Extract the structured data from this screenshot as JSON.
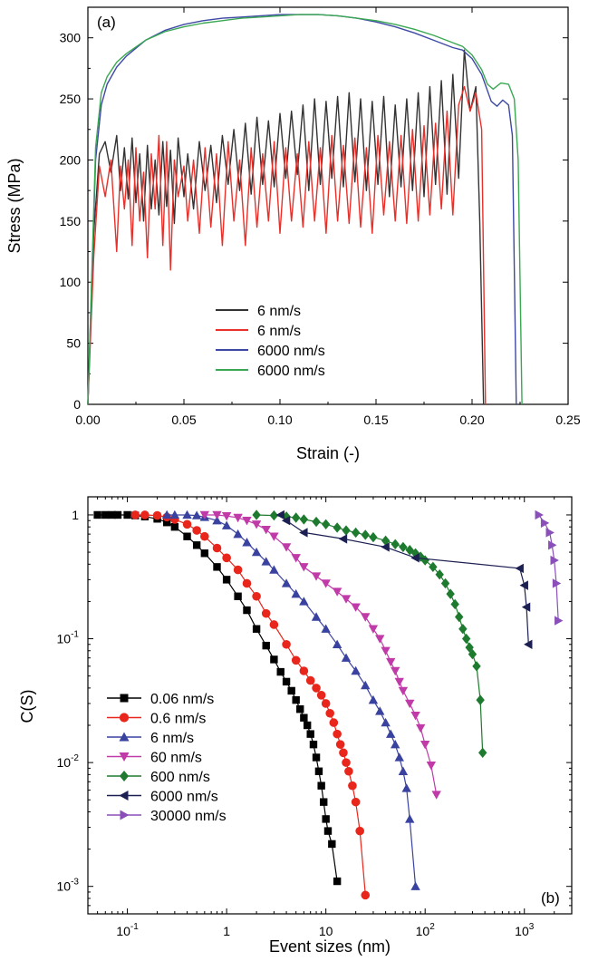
{
  "chart_data": [
    {
      "type": "line",
      "panel_label": "(a)",
      "xlabel": "Strain (-)",
      "ylabel": "Stress (MPa)",
      "xlim": [
        0,
        0.25
      ],
      "ylim": [
        0,
        325
      ],
      "xticks": [
        0,
        0.05,
        0.1,
        0.15,
        0.2,
        0.25
      ],
      "xtick_labels": [
        "0.00",
        "0.05",
        "0.10",
        "0.15",
        "0.20",
        "0.25"
      ],
      "yticks": [
        0,
        50,
        100,
        150,
        200,
        250,
        300
      ],
      "ytick_labels": [
        "0",
        "50",
        "100",
        "150",
        "200",
        "250",
        "300"
      ],
      "legend_position": "bottom-center",
      "series": [
        {
          "name": "6 nm/s",
          "color": "#333333",
          "x": [
            0.0,
            0.003,
            0.006,
            0.009,
            0.012,
            0.015,
            0.017,
            0.019,
            0.021,
            0.023,
            0.025,
            0.027,
            0.029,
            0.031,
            0.033,
            0.035,
            0.037,
            0.039,
            0.041,
            0.043,
            0.045,
            0.047,
            0.05,
            0.052,
            0.055,
            0.058,
            0.061,
            0.064,
            0.067,
            0.07,
            0.073,
            0.076,
            0.079,
            0.082,
            0.085,
            0.088,
            0.091,
            0.094,
            0.097,
            0.1,
            0.103,
            0.106,
            0.109,
            0.112,
            0.115,
            0.118,
            0.121,
            0.124,
            0.127,
            0.13,
            0.133,
            0.136,
            0.139,
            0.142,
            0.145,
            0.148,
            0.151,
            0.154,
            0.157,
            0.16,
            0.163,
            0.166,
            0.169,
            0.172,
            0.175,
            0.178,
            0.181,
            0.184,
            0.187,
            0.19,
            0.193,
            0.196,
            0.199,
            0.202,
            0.204,
            0.206
          ],
          "y": [
            0,
            140,
            205,
            215,
            190,
            220,
            175,
            210,
            168,
            218,
            165,
            205,
            150,
            212,
            160,
            200,
            155,
            215,
            162,
            208,
            148,
            218,
            170,
            205,
            160,
            215,
            175,
            212,
            165,
            220,
            180,
            225,
            175,
            230,
            172,
            235,
            180,
            232,
            178,
            238,
            185,
            240,
            188,
            245,
            175,
            250,
            180,
            248,
            185,
            252,
            178,
            255,
            182,
            250,
            175,
            248,
            180,
            252,
            170,
            245,
            178,
            250,
            175,
            255,
            170,
            260,
            180,
            265,
            172,
            270,
            185,
            290,
            240,
            260,
            150,
            0
          ]
        },
        {
          "name": "6 nm/s",
          "color": "#e8302a",
          "x": [
            0.0,
            0.003,
            0.006,
            0.009,
            0.012,
            0.015,
            0.017,
            0.019,
            0.021,
            0.023,
            0.025,
            0.027,
            0.029,
            0.031,
            0.033,
            0.035,
            0.037,
            0.039,
            0.041,
            0.043,
            0.045,
            0.047,
            0.05,
            0.052,
            0.055,
            0.058,
            0.061,
            0.064,
            0.067,
            0.07,
            0.073,
            0.076,
            0.079,
            0.082,
            0.085,
            0.088,
            0.091,
            0.094,
            0.097,
            0.1,
            0.103,
            0.106,
            0.109,
            0.112,
            0.115,
            0.118,
            0.121,
            0.124,
            0.127,
            0.13,
            0.133,
            0.136,
            0.139,
            0.142,
            0.145,
            0.148,
            0.151,
            0.154,
            0.157,
            0.16,
            0.163,
            0.166,
            0.169,
            0.172,
            0.175,
            0.178,
            0.181,
            0.184,
            0.187,
            0.19,
            0.193,
            0.196,
            0.199,
            0.202,
            0.205,
            0.207
          ],
          "y": [
            0,
            120,
            195,
            170,
            200,
            125,
            195,
            160,
            200,
            130,
            210,
            150,
            190,
            120,
            205,
            160,
            220,
            130,
            215,
            110,
            200,
            170,
            195,
            150,
            200,
            140,
            210,
            145,
            205,
            130,
            215,
            150,
            200,
            130,
            210,
            145,
            205,
            150,
            215,
            140,
            210,
            150,
            205,
            145,
            215,
            150,
            210,
            140,
            220,
            150,
            212,
            148,
            218,
            145,
            210,
            140,
            220,
            155,
            215,
            150,
            220,
            148,
            225,
            150,
            228,
            155,
            230,
            160,
            240,
            155,
            245,
            260,
            240,
            255,
            225,
            0
          ]
        },
        {
          "name": "6000 nm/s",
          "color": "#3d49a5",
          "x": [
            0.0,
            0.004,
            0.007,
            0.01,
            0.015,
            0.02,
            0.03,
            0.04,
            0.05,
            0.06,
            0.07,
            0.08,
            0.09,
            0.1,
            0.11,
            0.12,
            0.13,
            0.14,
            0.15,
            0.16,
            0.17,
            0.18,
            0.19,
            0.195,
            0.2,
            0.205,
            0.21,
            0.213,
            0.216,
            0.219,
            0.221,
            0.223
          ],
          "y": [
            0,
            200,
            245,
            262,
            276,
            285,
            298,
            306,
            311,
            314,
            316,
            317,
            318,
            319,
            319,
            319,
            318,
            316,
            313,
            309,
            304,
            298,
            292,
            290,
            283,
            270,
            248,
            244,
            249,
            245,
            220,
            0
          ]
        },
        {
          "name": "6000 nm/s",
          "color": "#3aa852",
          "x": [
            0.0,
            0.004,
            0.007,
            0.01,
            0.015,
            0.02,
            0.03,
            0.04,
            0.05,
            0.06,
            0.07,
            0.08,
            0.09,
            0.1,
            0.11,
            0.12,
            0.13,
            0.14,
            0.15,
            0.16,
            0.17,
            0.18,
            0.19,
            0.195,
            0.2,
            0.205,
            0.208,
            0.211,
            0.215,
            0.219,
            0.222,
            0.224,
            0.226
          ],
          "y": [
            0,
            210,
            255,
            268,
            280,
            287,
            298,
            305,
            309,
            312,
            314,
            316,
            317,
            318,
            319,
            319,
            318,
            316,
            314,
            311,
            307,
            302,
            296,
            293,
            286,
            274,
            262,
            258,
            263,
            262,
            250,
            200,
            0
          ]
        }
      ]
    },
    {
      "type": "scatter",
      "panel_label": "(b)",
      "xlabel": "Event sizes (nm)",
      "ylabel": "C(S)",
      "xscale": "log",
      "yscale": "log",
      "xlim": [
        0.04,
        3000
      ],
      "ylim": [
        0.0006,
        1.4
      ],
      "xticks": [
        0.1,
        1,
        10,
        100,
        1000
      ],
      "xtick_labels": [
        {
          "base": "10",
          "exp": "-1"
        },
        {
          "base": "1",
          "exp": ""
        },
        {
          "base": "10",
          "exp": ""
        },
        {
          "base": "10",
          "exp": "2"
        },
        {
          "base": "10",
          "exp": "3"
        }
      ],
      "yticks": [
        0.001,
        0.01,
        0.1,
        1
      ],
      "ytick_labels": [
        {
          "base": "10",
          "exp": "-3"
        },
        {
          "base": "10",
          "exp": "-2"
        },
        {
          "base": "10",
          "exp": "-1"
        },
        {
          "base": "1",
          "exp": ""
        }
      ],
      "legend_position": "bottom-left",
      "series": [
        {
          "name": "0.06 nm/s",
          "color": "#000000",
          "marker": "square",
          "x": [
            0.05,
            0.06,
            0.07,
            0.08,
            0.1,
            0.12,
            0.15,
            0.2,
            0.25,
            0.3,
            0.4,
            0.5,
            0.6,
            0.8,
            1.0,
            1.3,
            1.6,
            2.0,
            2.5,
            3.0,
            3.5,
            4.0,
            4.5,
            5.0,
            5.5,
            6.0,
            6.5,
            7.0,
            7.5,
            8.0,
            8.5,
            9.0,
            9.5,
            10.0,
            10.5,
            11.5,
            13.0
          ],
          "y": [
            1.0,
            1.0,
            1.0,
            1.0,
            1.0,
            0.99,
            0.97,
            0.93,
            0.87,
            0.8,
            0.67,
            0.57,
            0.49,
            0.38,
            0.3,
            0.22,
            0.17,
            0.12,
            0.088,
            0.068,
            0.054,
            0.045,
            0.038,
            0.032,
            0.027,
            0.023,
            0.02,
            0.017,
            0.014,
            0.011,
            0.0085,
            0.0065,
            0.0048,
            0.0035,
            0.0028,
            0.0022,
            0.0011
          ]
        },
        {
          "name": "0.6 nm/s",
          "color": "#e8261c",
          "marker": "circle",
          "x": [
            0.12,
            0.15,
            0.2,
            0.25,
            0.3,
            0.4,
            0.5,
            0.6,
            0.8,
            1.0,
            1.3,
            1.6,
            2.0,
            2.5,
            3.0,
            4.0,
            5.0,
            6.0,
            7.0,
            8.0,
            9.0,
            10.0,
            11.0,
            12.0,
            13.0,
            14.0,
            15.0,
            16.0,
            17.0,
            18.5,
            20.0,
            22.0,
            25.0
          ],
          "y": [
            1.0,
            1.0,
            0.99,
            0.96,
            0.92,
            0.84,
            0.75,
            0.67,
            0.54,
            0.45,
            0.36,
            0.28,
            0.22,
            0.16,
            0.13,
            0.09,
            0.067,
            0.055,
            0.046,
            0.04,
            0.035,
            0.03,
            0.025,
            0.021,
            0.017,
            0.014,
            0.012,
            0.01,
            0.0085,
            0.0065,
            0.0048,
            0.0028,
            0.00085
          ]
        },
        {
          "name": "6 nm/s",
          "color": "#3a42a0",
          "marker": "triangle-up",
          "x": [
            0.25,
            0.3,
            0.4,
            0.5,
            0.6,
            0.8,
            1.0,
            1.3,
            1.6,
            2.0,
            2.5,
            3.0,
            4.0,
            5.0,
            6.0,
            8.0,
            10.0,
            13.0,
            16.0,
            20.0,
            25.0,
            30.0,
            35.0,
            40.0,
            45.0,
            50.0,
            55.0,
            60.0,
            65.0,
            70.0,
            80.0
          ],
          "y": [
            1.0,
            1.0,
            1.0,
            0.99,
            0.96,
            0.9,
            0.82,
            0.7,
            0.6,
            0.5,
            0.42,
            0.36,
            0.28,
            0.23,
            0.2,
            0.15,
            0.12,
            0.09,
            0.07,
            0.055,
            0.042,
            0.032,
            0.026,
            0.021,
            0.017,
            0.014,
            0.011,
            0.0085,
            0.0062,
            0.0035,
            0.001
          ]
        },
        {
          "name": "60 nm/s",
          "color": "#c03aa8",
          "marker": "triangle-down",
          "x": [
            0.6,
            0.8,
            1.0,
            1.3,
            1.6,
            2.0,
            2.5,
            3.0,
            4.0,
            5.0,
            6.0,
            8.0,
            10.0,
            13.0,
            16.0,
            20.0,
            25.0,
            30.0,
            35.0,
            40.0,
            45.0,
            50.0,
            55.0,
            60.0,
            70.0,
            80.0,
            90.0,
            100.0,
            115.0,
            130.0
          ],
          "y": [
            1.0,
            1.0,
            0.98,
            0.95,
            0.9,
            0.84,
            0.76,
            0.67,
            0.55,
            0.45,
            0.38,
            0.32,
            0.28,
            0.24,
            0.21,
            0.18,
            0.15,
            0.12,
            0.1,
            0.08,
            0.065,
            0.055,
            0.045,
            0.038,
            0.03,
            0.024,
            0.019,
            0.014,
            0.0095,
            0.0055
          ]
        },
        {
          "name": "600 nm/s",
          "color": "#1e7a2e",
          "marker": "diamond",
          "x": [
            2.0,
            3.0,
            4.0,
            5.0,
            6.0,
            8.0,
            10.0,
            13.0,
            16.0,
            20.0,
            25.0,
            30.0,
            40.0,
            50.0,
            60.0,
            70.0,
            80.0,
            90.0,
            100.0,
            120.0,
            140.0,
            160.0,
            180.0,
            200.0,
            220.0,
            240.0,
            260.0,
            280.0,
            300.0,
            330.0,
            360.0,
            380.0
          ],
          "y": [
            1.0,
            0.99,
            0.97,
            0.95,
            0.92,
            0.88,
            0.84,
            0.79,
            0.75,
            0.72,
            0.69,
            0.66,
            0.62,
            0.58,
            0.55,
            0.52,
            0.49,
            0.46,
            0.43,
            0.38,
            0.33,
            0.28,
            0.23,
            0.19,
            0.15,
            0.12,
            0.1,
            0.085,
            0.075,
            0.06,
            0.032,
            0.012
          ]
        },
        {
          "name": "6000 nm/s",
          "color": "#1c1f52",
          "marker": "triangle-left",
          "x": [
            3.5,
            4.0,
            6.0,
            15.0,
            40.0,
            80.0,
            900.0,
            1000.0,
            1050.0,
            1100.0
          ],
          "y": [
            1.0,
            0.9,
            0.72,
            0.64,
            0.55,
            0.45,
            0.37,
            0.27,
            0.18,
            0.09
          ]
        },
        {
          "name": "30000 nm/s",
          "color": "#8a4fb8",
          "marker": "triangle-right",
          "x": [
            1400.0,
            1600.0,
            1800.0,
            1900.0,
            2000.0,
            2100.0,
            2200.0
          ],
          "y": [
            1.0,
            0.86,
            0.72,
            0.57,
            0.43,
            0.28,
            0.14
          ]
        }
      ]
    }
  ]
}
